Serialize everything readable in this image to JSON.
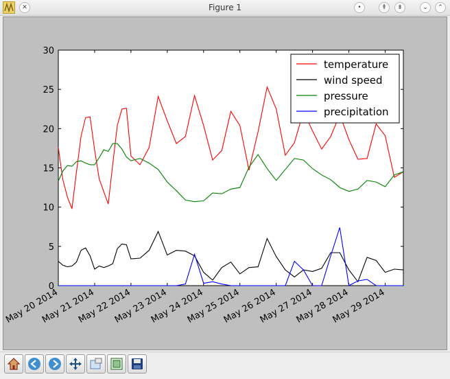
{
  "window": {
    "title": "Figure 1",
    "app_icon": "matplotlib-figure-icon",
    "controls": [
      "close-icon",
      "minimize-icon",
      "shade-icon",
      "keep-above-icon",
      "chevron-down-icon",
      "chevron-up-icon"
    ]
  },
  "toolbar": {
    "tools": [
      {
        "name": "home-icon"
      },
      {
        "name": "back-arrow-icon"
      },
      {
        "name": "forward-arrow-icon"
      },
      {
        "name": "pan-move-icon"
      },
      {
        "name": "zoom-to-rect-icon"
      },
      {
        "name": "subplots-config-icon"
      },
      {
        "name": "save-icon"
      }
    ]
  },
  "colors": {
    "canvas_bg": "#bfbfbf",
    "axes_bg": "#ffffff"
  },
  "chart_data": {
    "type": "line",
    "title": "",
    "xlabel": "",
    "ylabel": "",
    "ylim": [
      0,
      30
    ],
    "yticks": [
      "0",
      "5",
      "10",
      "15",
      "20",
      "25",
      "30"
    ],
    "xlim_days": [
      0,
      9.5
    ],
    "xticks": [
      "May 20 2014",
      "May 21 2014",
      "May 22 2014",
      "May 23 2014",
      "May 24 2014",
      "May 25 2014",
      "May 26 2014",
      "May 27 2014",
      "May 28 2014",
      "May 29 2014"
    ],
    "grid": false,
    "legend_position": "upper right",
    "x": [
      "May 20 2014 00:00",
      "May 20 2014 03:00",
      "May 20 2014 06:00",
      "May 20 2014 09:00",
      "May 20 2014 12:00",
      "May 20 2014 15:00",
      "May 20 2014 18:00",
      "May 20 2014 21:00",
      "May 21 2014 00:00",
      "May 21 2014 03:00",
      "May 21 2014 06:00",
      "May 21 2014 09:00",
      "May 21 2014 12:00",
      "May 21 2014 15:00",
      "May 21 2014 18:00",
      "May 21 2014 21:00",
      "May 22 2014 00:00",
      "May 22 2014 06:00",
      "May 22 2014 12:00",
      "May 22 2014 18:00",
      "May 23 2014 00:00",
      "May 23 2014 06:00",
      "May 23 2014 12:00",
      "May 23 2014 18:00",
      "May 24 2014 00:00",
      "May 24 2014 06:00",
      "May 24 2014 12:00",
      "May 24 2014 18:00",
      "May 25 2014 00:00",
      "May 25 2014 06:00",
      "May 25 2014 12:00",
      "May 25 2014 18:00",
      "May 26 2014 00:00",
      "May 26 2014 06:00",
      "May 26 2014 12:00",
      "May 26 2014 18:00",
      "May 27 2014 00:00",
      "May 27 2014 06:00",
      "May 27 2014 12:00",
      "May 27 2014 18:00",
      "May 28 2014 00:00",
      "May 28 2014 06:00",
      "May 28 2014 12:00",
      "May 28 2014 18:00",
      "May 29 2014 00:00",
      "May 29 2014 06:00",
      "May 29 2014 12:00"
    ],
    "series": [
      {
        "name": "temperature",
        "color": "#ff0000",
        "values": [
          17.6,
          13.5,
          11.3,
          9.8,
          14.5,
          19.0,
          21.4,
          21.5,
          17.3,
          13.6,
          12.0,
          10.4,
          15.5,
          20.4,
          22.5,
          22.6,
          16.5,
          15.4,
          17.6,
          24.1,
          21.0,
          18.1,
          19.0,
          24.2,
          20.4,
          16.0,
          17.2,
          22.2,
          20.4,
          14.7,
          19.6,
          25.3,
          22.5,
          16.6,
          18.2,
          22.2,
          19.7,
          17.4,
          19.0,
          21.8,
          18.6,
          16.1,
          16.2,
          20.6,
          19.1,
          13.8,
          14.5
        ]
      },
      {
        "name": "wind speed",
        "color": "#000000",
        "values": [
          3.1,
          2.6,
          2.4,
          2.5,
          3.0,
          4.5,
          4.8,
          3.8,
          2.1,
          2.5,
          2.3,
          2.5,
          2.8,
          4.7,
          5.3,
          5.2,
          3.4,
          3.5,
          4.5,
          6.9,
          3.9,
          4.5,
          4.4,
          3.8,
          1.7,
          0.7,
          2.3,
          3.0,
          1.5,
          2.3,
          2.4,
          6.0,
          3.7,
          2.0,
          1.1,
          2.0,
          1.8,
          2.2,
          4.2,
          4.2,
          2.0,
          0.5,
          3.6,
          3.2,
          1.7,
          2.1,
          2.0
        ]
      },
      {
        "name": "pressure",
        "color": "#008000",
        "values": [
          13.3,
          14.6,
          15.3,
          15.2,
          15.8,
          15.9,
          15.6,
          15.4,
          15.4,
          16.3,
          17.3,
          17.1,
          18.1,
          18.1,
          17.4,
          16.4,
          15.9,
          16.2,
          15.6,
          14.8,
          13.2,
          12.1,
          10.9,
          10.7,
          10.8,
          11.8,
          11.7,
          12.3,
          12.5,
          15.1,
          16.7,
          14.9,
          13.4,
          14.8,
          16.2,
          16.0,
          14.9,
          14.1,
          13.5,
          12.5,
          12.0,
          12.3,
          13.4,
          13.2,
          12.6,
          14.1,
          14.5
        ]
      },
      {
        "name": "precipitation",
        "color": "#0000ff",
        "values": [
          0,
          0,
          0,
          0,
          0,
          0,
          0,
          0,
          0,
          0,
          0,
          0,
          0,
          0,
          0,
          0,
          0,
          0,
          0,
          0,
          0,
          0,
          0.2,
          4.0,
          0.3,
          0.5,
          0.2,
          0,
          0,
          0,
          0,
          0,
          0,
          0,
          3.1,
          2.0,
          0,
          0,
          3.8,
          7.4,
          0,
          0.6,
          0.8,
          0,
          0,
          0,
          0
        ]
      }
    ]
  }
}
